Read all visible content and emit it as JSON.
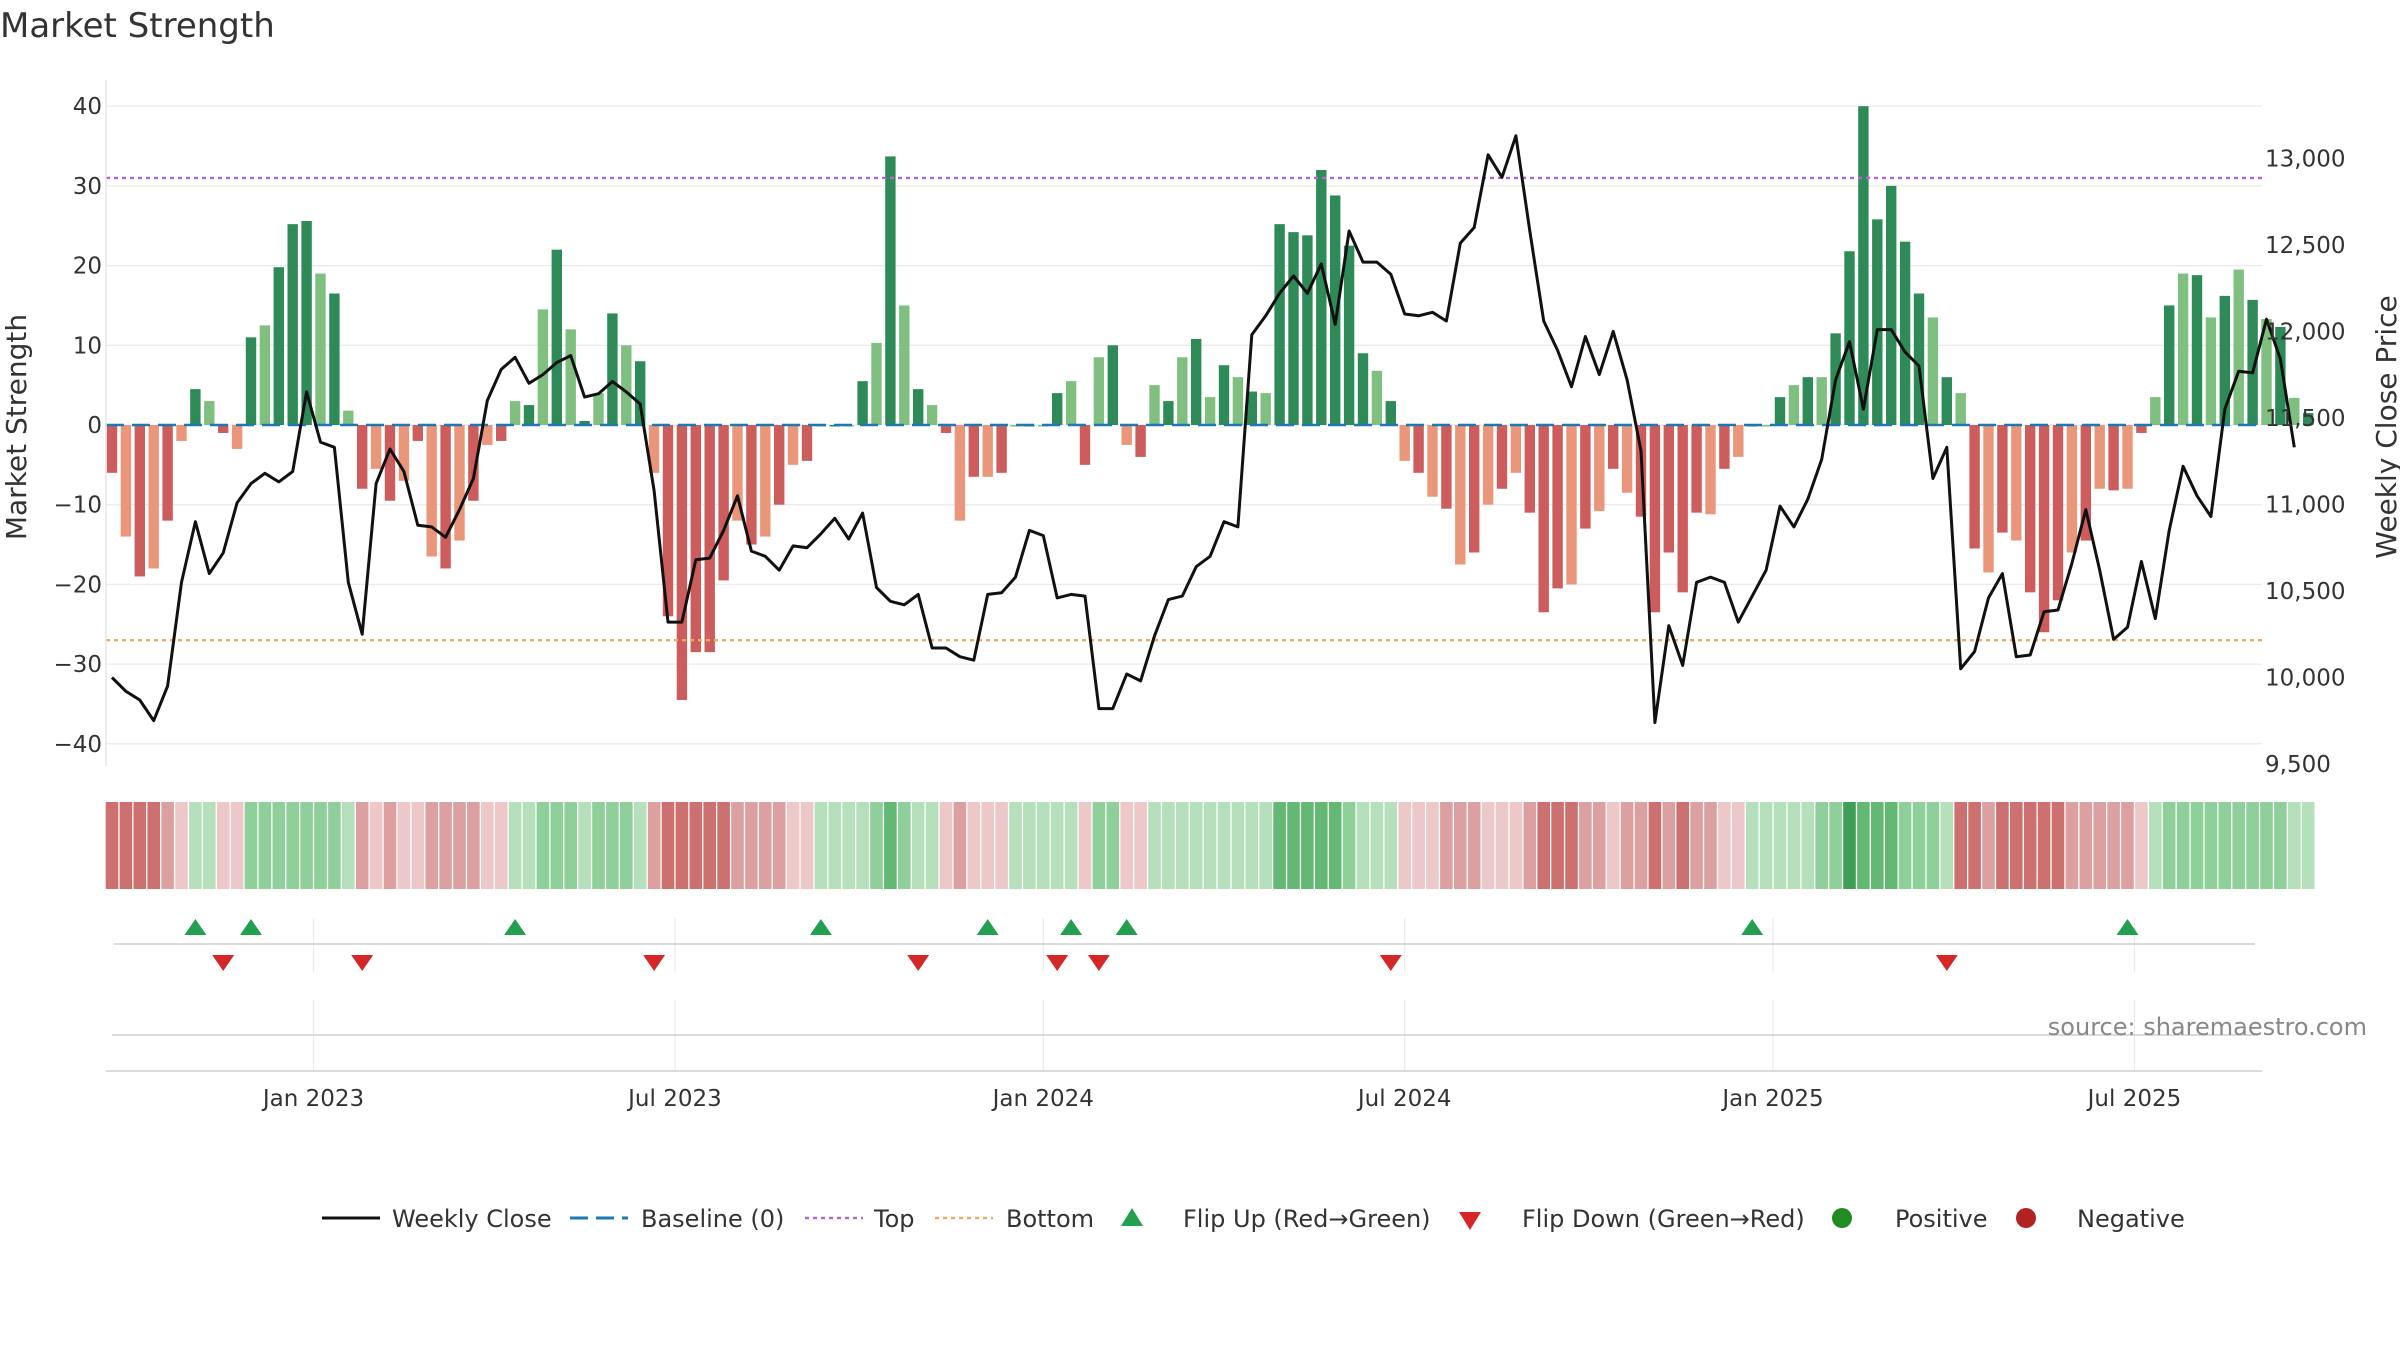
{
  "chart_data": {
    "type": "bar+line",
    "title": "Market Strength",
    "ylabel_left": "Market Strength",
    "ylabel_right": "Weekly Close Price",
    "ylim_left": [
      -44,
      40
    ],
    "ylim_right": [
      9400,
      13400
    ],
    "yticks_left": [
      -40,
      -30,
      -20,
      -10,
      0,
      10,
      20,
      30,
      40
    ],
    "yticks_left_labels": [
      "−40",
      "−30",
      "−20",
      "−10",
      "0",
      "10",
      "20",
      "30",
      "40"
    ],
    "yticks_right": [
      9500,
      10000,
      10500,
      11000,
      11500,
      12000,
      12500,
      13000
    ],
    "yticks_right_labels": [
      "9,500",
      "10,000",
      "10,500",
      "11,000",
      "11,500",
      "12,000",
      "12,500",
      "13,000"
    ],
    "x_ticks": [
      {
        "week": 14.5,
        "label": "Jan 2023"
      },
      {
        "week": 40.5,
        "label": "Jul 2023"
      },
      {
        "week": 67,
        "label": "Jan 2024"
      },
      {
        "week": 93,
        "label": "Jul 2024"
      },
      {
        "week": 119.5,
        "label": "Jan 2025"
      },
      {
        "week": 145.5,
        "label": "Jul 2025"
      }
    ],
    "top_threshold": 31,
    "bottom_threshold": -27,
    "baseline": 0,
    "strength": [
      -6,
      -14,
      -19,
      -18,
      -12,
      -2,
      4.5,
      3,
      -1,
      -3,
      11,
      12.5,
      19.8,
      25.2,
      25.6,
      19,
      16.5,
      1.8,
      -8,
      -5.5,
      -9.5,
      -7,
      -2,
      -16.5,
      -18,
      -14.5,
      -9.5,
      -2.5,
      -2,
      3,
      2.5,
      14.5,
      22,
      12,
      0.5,
      4,
      14,
      10,
      8,
      -6,
      -24,
      -34.5,
      -28.5,
      -28.5,
      -19.5,
      -12,
      -15,
      -14,
      -10,
      -5,
      -4.5,
      0,
      0,
      0,
      5.5,
      10.3,
      33.7,
      15,
      4.5,
      2.5,
      -1,
      -12,
      -6.5,
      -6.5,
      -6,
      0,
      0,
      0,
      4,
      5.5,
      -5,
      8.5,
      10,
      -2.5,
      -4,
      5,
      3,
      8.5,
      10.8,
      3.5,
      7.5,
      6,
      4.2,
      4,
      25.2,
      24.2,
      23.8,
      32,
      28.8,
      22.5,
      9,
      6.8,
      3,
      -4.5,
      -6,
      -9,
      -10.5,
      -17.5,
      -16,
      -10,
      -8,
      -6,
      -11,
      -23.5,
      -20.5,
      -20,
      -13,
      -10.8,
      -5.5,
      -8.5,
      -11.5,
      -23.5,
      -16,
      -21,
      -11,
      -11.2,
      -5.5,
      -4,
      0,
      0,
      3.5,
      5,
      6,
      6,
      11.5,
      21.8,
      40,
      25.8,
      30,
      23,
      16.5,
      13.5,
      6,
      4,
      -15.5,
      -18.5,
      -13.5,
      -14.5,
      -21,
      -26,
      -22,
      -16,
      -14.5,
      -8,
      -8.2,
      -8,
      -1,
      3.5,
      15,
      19,
      18.8,
      13.5,
      16.2,
      19.5,
      15.7,
      13.3,
      12.3,
      3.4,
      1.5
    ],
    "weekly_close": [
      10000,
      9920,
      9870,
      9750,
      9950,
      10550,
      10900,
      10600,
      10720,
      11010,
      11120,
      11180,
      11130,
      11190,
      11650,
      11360,
      11330,
      10550,
      10250,
      11120,
      11320,
      11190,
      10880,
      10870,
      10810,
      10970,
      11150,
      11600,
      11780,
      11850,
      11700,
      11750,
      11820,
      11860,
      11620,
      11640,
      11710,
      11650,
      11580,
      11080,
      10320,
      10320,
      10680,
      10690,
      10850,
      11050,
      10730,
      10700,
      10620,
      10760,
      10750,
      10830,
      10920,
      10800,
      10950,
      10520,
      10440,
      10420,
      10480,
      10170,
      10170,
      10120,
      10100,
      10480,
      10490,
      10580,
      10850,
      10820,
      10460,
      10480,
      10470,
      9820,
      9820,
      10020,
      9980,
      10240,
      10450,
      10470,
      10640,
      10700,
      10900,
      10870,
      11980,
      12090,
      12220,
      12320,
      12220,
      12390,
      12040,
      12580,
      12400,
      12400,
      12330,
      12100,
      12090,
      12110,
      12060,
      12510,
      12600,
      13020,
      12890,
      13130,
      12580,
      12060,
      11890,
      11680,
      11970,
      11750,
      12000,
      11720,
      11310,
      9740,
      10300,
      10070,
      10550,
      10580,
      10550,
      10320,
      10470,
      10620,
      10990,
      10870,
      11030,
      11260,
      11720,
      11940,
      11550,
      12010,
      12010,
      11880,
      11800,
      11150,
      11330,
      10050,
      10150,
      10460,
      10600,
      10120,
      10130,
      10380,
      10390,
      10660,
      10970,
      10620,
      10220,
      10290,
      10670,
      10340,
      10850,
      11220,
      11050,
      10930,
      11550,
      11770,
      11760,
      12070,
      11840,
      11330
    ],
    "heat": [
      "r3",
      "r3",
      "r3",
      "r3",
      "r2",
      "r1",
      "g1",
      "g1",
      "r1",
      "r1",
      "g2",
      "g2",
      "g2",
      "g2",
      "g2",
      "g2",
      "g2",
      "g1",
      "r2",
      "r1",
      "r2",
      "r1",
      "r1",
      "r2",
      "r2",
      "r2",
      "r2",
      "r1",
      "r1",
      "g1",
      "g1",
      "g2",
      "g2",
      "g2",
      "g1",
      "g2",
      "g2",
      "g2",
      "g1",
      "r2",
      "r3",
      "r3",
      "r3",
      "r3",
      "r3",
      "r2",
      "r2",
      "r2",
      "r2",
      "r1",
      "r1",
      "g1",
      "g1",
      "g1",
      "g1",
      "g2",
      "g3",
      "g2",
      "g1",
      "g1",
      "r1",
      "r2",
      "r1",
      "r1",
      "r1",
      "g1",
      "g1",
      "g1",
      "g1",
      "g1",
      "r1",
      "g2",
      "g2",
      "r1",
      "r1",
      "g1",
      "g1",
      "g1",
      "g1",
      "g1",
      "g1",
      "g1",
      "g1",
      "g1",
      "g3",
      "g3",
      "g3",
      "g3",
      "g3",
      "g2",
      "g1",
      "g1",
      "g1",
      "r1",
      "r1",
      "r1",
      "r2",
      "r2",
      "r2",
      "r1",
      "r1",
      "r1",
      "r2",
      "r3",
      "r3",
      "r3",
      "r2",
      "r2",
      "r1",
      "r2",
      "r2",
      "r3",
      "r2",
      "r3",
      "r2",
      "r2",
      "r1",
      "r1",
      "g1",
      "g1",
      "g1",
      "g1",
      "g1",
      "g2",
      "g2",
      "g4",
      "g3",
      "g3",
      "g3",
      "g2",
      "g2",
      "g2",
      "g1",
      "r3",
      "r3",
      "r2",
      "r3",
      "r3",
      "r3",
      "r3",
      "r3",
      "r2",
      "r2",
      "r2",
      "r2",
      "r2",
      "r1",
      "g1",
      "g2",
      "g2",
      "g2",
      "g2",
      "g2",
      "g2",
      "g2",
      "g2",
      "g2",
      "g1",
      "g1"
    ],
    "flip_up_weeks": [
      6,
      10,
      29,
      51,
      63,
      69,
      73,
      118,
      145
    ],
    "flip_down_weeks": [
      8,
      18,
      39,
      58,
      68,
      71,
      92,
      132
    ],
    "source": "source: sharemaestro.com",
    "legend": [
      {
        "label": "Weekly Close",
        "symbol": "line"
      },
      {
        "label": "Baseline (0)",
        "symbol": "dash"
      },
      {
        "label": "Top",
        "symbol": "dot-purple"
      },
      {
        "label": "Bottom",
        "symbol": "dot-orange"
      },
      {
        "label": "Flip Up (Red→Green)",
        "symbol": "tri-up"
      },
      {
        "label": "Flip Down (Green→Red)",
        "symbol": "tri-down"
      },
      {
        "label": "Positive",
        "symbol": "circle-green"
      },
      {
        "label": "Negative",
        "symbol": "circle-red"
      }
    ],
    "colors": {
      "pos_dark": "#2e8b57",
      "pos_light": "#7fbf7f",
      "neg_dark": "#cd5c5c",
      "neg_light": "#e9967a",
      "close_line": "#111111",
      "baseline": "#1f77b4",
      "top": "#b666d2",
      "bottom": "#f0a860",
      "flip_up": "#22a050",
      "flip_down": "#d62728",
      "positive": "#228b22",
      "negative": "#b22222",
      "heat": {
        "r3": "#cc7070",
        "r2": "#dca0a0",
        "r1": "#ecc8c8",
        "g1": "#b6e0bc",
        "g2": "#8fcf99",
        "g3": "#63b874",
        "g4": "#3e9e55"
      }
    }
  }
}
